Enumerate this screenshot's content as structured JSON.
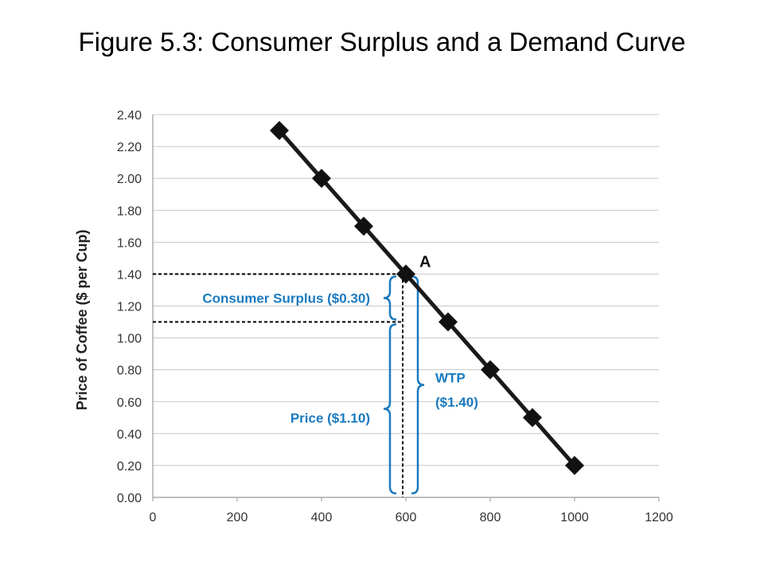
{
  "colors": {
    "annotation": "#1a7abf",
    "line": "#1a1a1a",
    "grid": "#c8c8c8",
    "axis": "#999999"
  },
  "chart_data": {
    "type": "line",
    "title": "Figure 5.3: Consumer Surplus and a Demand Curve",
    "ylabel": "Price of Coffee ($ per Cup)",
    "xlabel": "",
    "xlim": [
      0,
      1200
    ],
    "ylim": [
      0,
      2.4
    ],
    "grid": true,
    "x_ticks": [
      "0",
      "200",
      "400",
      "600",
      "800",
      "1000",
      "1200"
    ],
    "y_ticks": [
      "0.00",
      "0.20",
      "0.40",
      "0.60",
      "0.80",
      "1.00",
      "1.20",
      "1.40",
      "1.60",
      "1.80",
      "2.00",
      "2.20",
      "2.40"
    ],
    "series": [
      {
        "x": [
          300,
          400,
          500,
          600,
          700,
          800,
          900,
          1000
        ],
        "y": [
          2.3,
          2.0,
          1.7,
          1.4,
          1.1,
          0.8,
          0.5,
          0.2
        ]
      }
    ],
    "annotations": {
      "point_label": "A",
      "point": [
        600,
        1.4
      ],
      "market_price": 1.1,
      "consumer_surplus": "Consumer Surplus ($0.30)",
      "price": "Price ($1.10)",
      "wtp_line1": "WTP",
      "wtp_line2": "($1.40)"
    }
  }
}
